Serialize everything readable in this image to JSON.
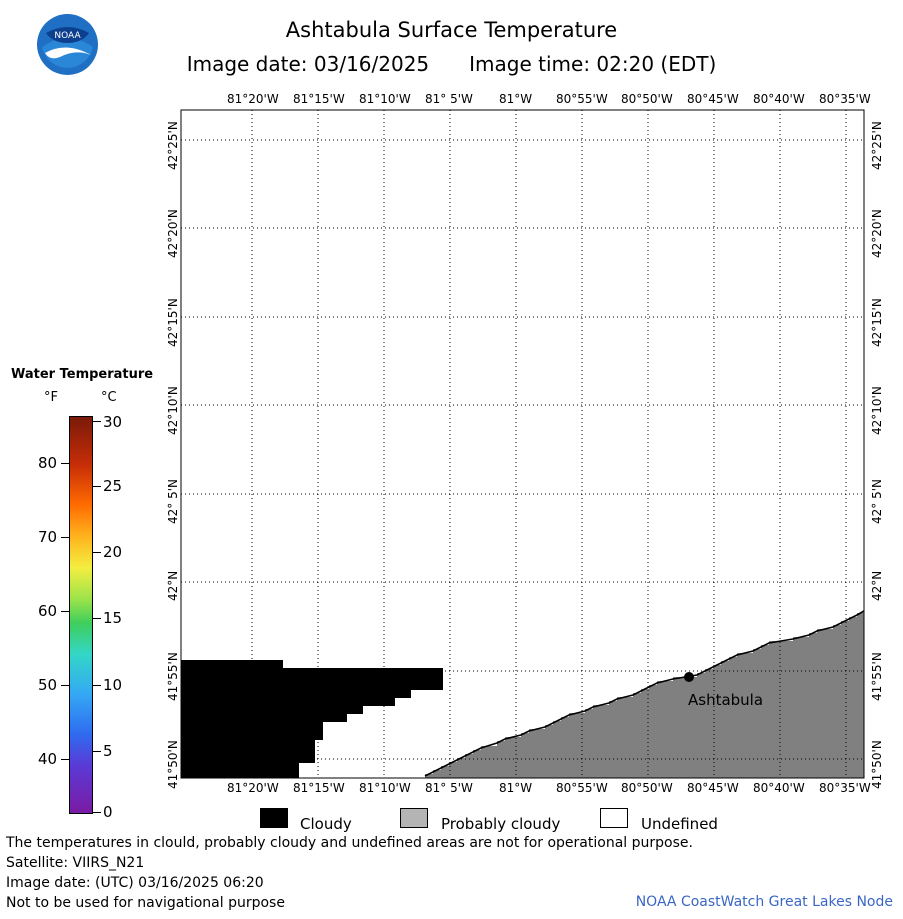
{
  "header": {
    "title": "Ashtabula Surface Temperature",
    "image_date": "Image date: 03/16/2025",
    "image_time": "Image time: 02:20 (EDT)"
  },
  "logo": {
    "text": "NOAA",
    "icon": "noaa-logo-icon"
  },
  "map": {
    "lon_labels": [
      "81°20'W",
      "81°15'W",
      "81°10'W",
      "81° 5'W",
      "81°W",
      "80°55'W",
      "80°50'W",
      "80°45'W",
      "80°40'W",
      "80°35'W"
    ],
    "lat_labels": [
      "42°25'N",
      "42°20'N",
      "42°15'N",
      "42°10'N",
      "42° 5'N",
      "42°N",
      "41°55'N",
      "41°50'N"
    ],
    "location_label": "Ashtabula",
    "colors": {
      "cloudy": "#000000",
      "land": "#808080",
      "grid": "#000000"
    }
  },
  "colorbar": {
    "title": "Water Temperature",
    "unit_f": "°F",
    "unit_c": "°C",
    "f_labels": [
      "80",
      "70",
      "60",
      "50",
      "40"
    ],
    "c_labels": [
      "30",
      "25",
      "20",
      "15",
      "10",
      "5",
      "0"
    ]
  },
  "legend": {
    "cloudy": "Cloudy",
    "probably_cloudy": "Probably cloudy",
    "undefined": "Undefined",
    "colors": {
      "cloudy": "#000000",
      "probably_cloudy": "#b4b4b4",
      "undefined": "#ffffff"
    }
  },
  "footer": {
    "note": "The temperatures in clould, probably cloudy and undefined areas are not for operational purpose.",
    "satellite": "Satellite: VIIRS_N21",
    "utc_date": "Image date: (UTC) 03/16/2025  06:20",
    "nav_warning": "Not to be used for navigational purpose",
    "credit": "NOAA CoastWatch Great Lakes Node"
  }
}
